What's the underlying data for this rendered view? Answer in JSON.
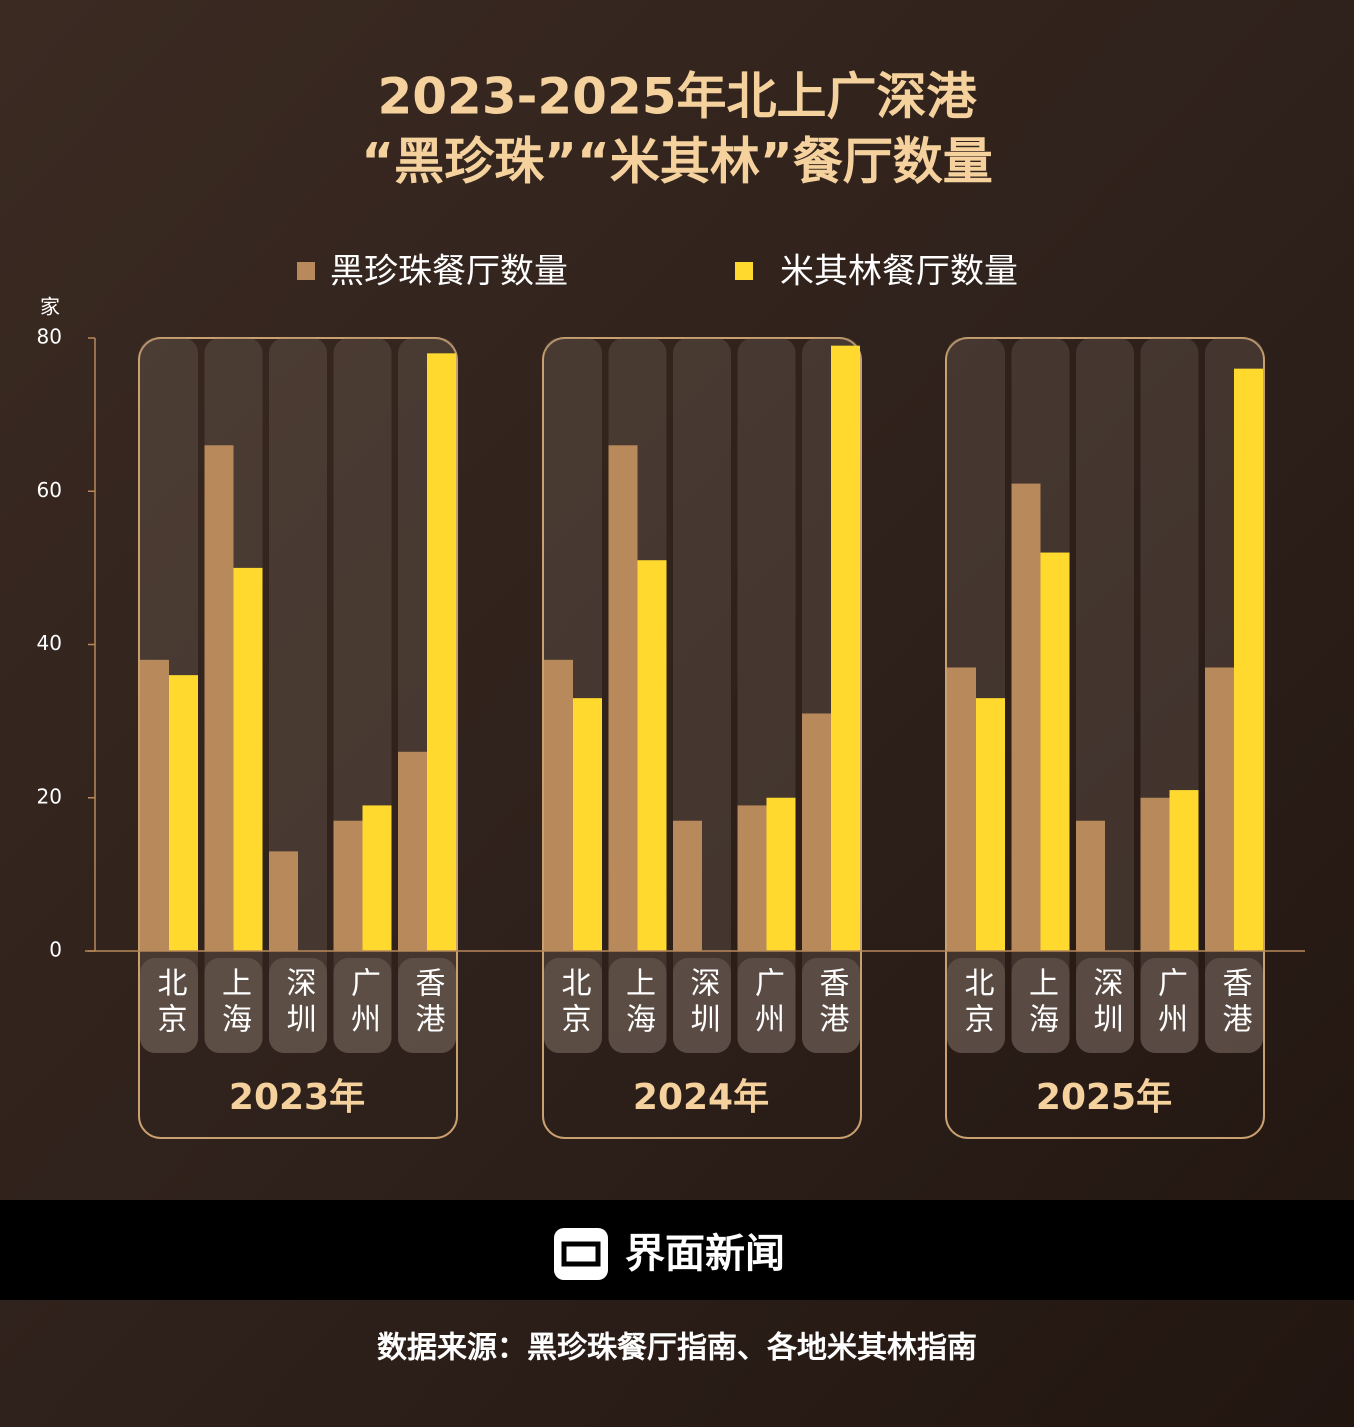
{
  "chart_data": {
    "type": "bar",
    "title": "2023-2025年北上广深港",
    "subtitle": "“黑珍珠”“米其林”餐厅数量",
    "y_unit": "家",
    "groups": [
      "2023年",
      "2024年",
      "2025年"
    ],
    "categories": [
      "北京",
      "上海",
      "深圳",
      "广州",
      "香港",
      "北京",
      "上海",
      "深圳",
      "广州",
      "香港",
      "北京",
      "上海",
      "深圳",
      "广州",
      "香港"
    ],
    "series": [
      {
        "name": "黑珍珠餐厅数量",
        "color": "#b8895a",
        "values": [
          38,
          66,
          13,
          17,
          26,
          38,
          66,
          17,
          19,
          31,
          37,
          61,
          17,
          20,
          37
        ]
      },
      {
        "name": "米其林餐厅数量",
        "color": "#ffd92e",
        "values": [
          36,
          50,
          null,
          19,
          78,
          33,
          51,
          null,
          20,
          79,
          33,
          52,
          null,
          21,
          76
        ]
      }
    ],
    "ylim": [
      0,
      80
    ],
    "yticks": [
      0,
      20,
      40,
      60,
      80
    ]
  },
  "footer": {
    "brand": "界面新闻",
    "source": "数据来源：黑珍珠餐厅指南、各地米其林指南"
  }
}
